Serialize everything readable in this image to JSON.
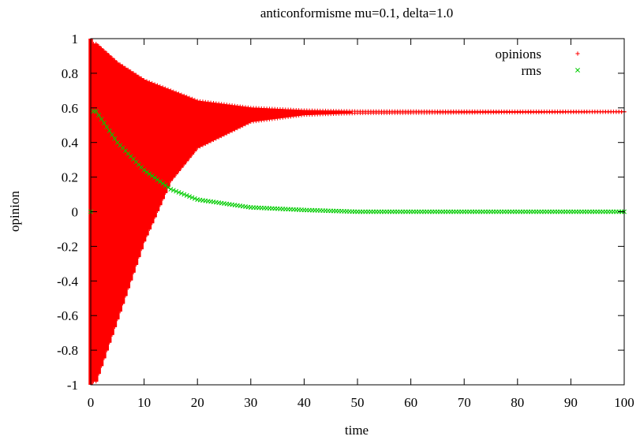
{
  "chart_data": {
    "type": "scatter",
    "title": "anticonformisme mu=0.1, delta=1.0",
    "xlabel": "time",
    "ylabel": "opinion",
    "xlim": [
      0,
      100
    ],
    "ylim": [
      -1,
      1
    ],
    "xticks": [
      "0",
      "10",
      "20",
      "30",
      "40",
      "50",
      "60",
      "70",
      "80",
      "90",
      "100"
    ],
    "yticks": [
      "1",
      "0.8",
      "0.6",
      "0.4",
      "0.2",
      "0",
      "-0.2",
      "-0.4",
      "-0.6",
      "-0.8",
      "-1"
    ],
    "legend_position": "top-right",
    "grid": false,
    "series": [
      {
        "name": "opinions",
        "marker": "plus",
        "color": "#ff0000",
        "x_start": 0,
        "x_end": 100,
        "x_step": 0.5,
        "equilibrium": 0.5774,
        "initial_spread": [
          -1,
          1
        ],
        "samples": [
          {
            "x": 1,
            "min": -0.98,
            "max": 0.97
          },
          {
            "x": 5,
            "min": -0.62,
            "max": 0.86
          },
          {
            "x": 10,
            "min": -0.17,
            "max": 0.76
          },
          {
            "x": 15,
            "min": 0.18,
            "max": 0.7
          },
          {
            "x": 20,
            "min": 0.37,
            "max": 0.64
          },
          {
            "x": 30,
            "min": 0.52,
            "max": 0.6
          },
          {
            "x": 40,
            "min": 0.56,
            "max": 0.585
          },
          {
            "x": 50,
            "min": 0.57,
            "max": 0.58
          },
          {
            "x": 100,
            "min": 0.577,
            "max": 0.578
          }
        ]
      },
      {
        "name": "rms",
        "marker": "cross",
        "color": "#00cc00",
        "x_start": 0,
        "x_end": 100,
        "x_step": 0.5,
        "samples": [
          {
            "x": 0,
            "y": 0.0
          },
          {
            "x": 0.5,
            "y": 0.58
          },
          {
            "x": 1,
            "y": 0.58
          },
          {
            "x": 5,
            "y": 0.4
          },
          {
            "x": 10,
            "y": 0.24
          },
          {
            "x": 15,
            "y": 0.13
          },
          {
            "x": 20,
            "y": 0.07
          },
          {
            "x": 30,
            "y": 0.025
          },
          {
            "x": 40,
            "y": 0.01
          },
          {
            "x": 50,
            "y": 0.0
          },
          {
            "x": 100,
            "y": 0.0
          }
        ]
      }
    ]
  }
}
